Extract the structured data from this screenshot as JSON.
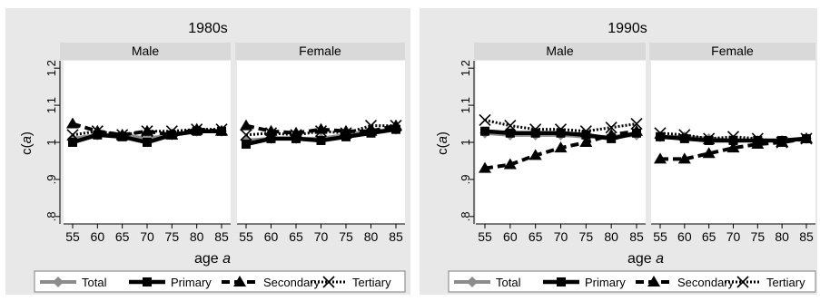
{
  "colors": {
    "outer_background": "#e8e8e8",
    "strip_background": "#d9d9d9",
    "plot_background": "#ffffff",
    "total": "#8c8c8c",
    "primary": "#000000",
    "secondary": "#000000",
    "tertiary": "#000000"
  },
  "chart_data": [
    {
      "type": "line",
      "title": "1980s",
      "xlabel": "age a",
      "ylabel": "c(a)",
      "panels": [
        "Male",
        "Female"
      ],
      "x": [
        55,
        60,
        65,
        70,
        75,
        80,
        85
      ],
      "xticks": [
        "55",
        "60",
        "65",
        "70",
        "75",
        "80",
        "85"
      ],
      "yticks": [
        ".8",
        ".9",
        "1",
        "1.1",
        "1.2"
      ],
      "ylim": [
        0.78,
        1.22
      ],
      "grid": false,
      "legend_position": "bottom",
      "series": {
        "Male": [
          {
            "name": "Total",
            "style": "solid-gray-diamond",
            "values": [
              1.01,
              1.02,
              1.02,
              1.01,
              1.02,
              1.03,
              1.03
            ]
          },
          {
            "name": "Primary",
            "style": "solid-thick-square",
            "values": [
              1.0,
              1.02,
              1.015,
              1.0,
              1.02,
              1.03,
              1.03
            ]
          },
          {
            "name": "Secondary",
            "style": "dashed-triangle",
            "values": [
              1.05,
              1.03,
              1.02,
              1.03,
              1.02,
              1.035,
              1.03
            ]
          },
          {
            "name": "Tertiary",
            "style": "dotted-x",
            "values": [
              1.02,
              1.03,
              1.02,
              1.03,
              1.03,
              1.035,
              1.035
            ]
          }
        ],
        "Female": [
          {
            "name": "Total",
            "style": "solid-gray-diamond",
            "values": [
              1.005,
              1.01,
              1.01,
              1.01,
              1.02,
              1.03,
              1.035
            ]
          },
          {
            "name": "Primary",
            "style": "solid-thick-square",
            "values": [
              0.995,
              1.01,
              1.01,
              1.005,
              1.015,
              1.025,
              1.035
            ]
          },
          {
            "name": "Secondary",
            "style": "dashed-triangle",
            "values": [
              1.045,
              1.03,
              1.025,
              1.035,
              1.03,
              1.03,
              1.045
            ]
          },
          {
            "name": "Tertiary",
            "style": "dotted-x",
            "values": [
              1.02,
              1.025,
              1.02,
              1.03,
              1.025,
              1.045,
              1.045
            ]
          }
        ]
      },
      "legend": [
        "Total",
        "Primary",
        "Secondary",
        "Tertiary"
      ]
    },
    {
      "type": "line",
      "title": "1990s",
      "xlabel": "age a",
      "ylabel": "c(a)",
      "panels": [
        "Male",
        "Female"
      ],
      "x": [
        55,
        60,
        65,
        70,
        75,
        80,
        85
      ],
      "xticks": [
        "55",
        "60",
        "65",
        "70",
        "75",
        "80",
        "85"
      ],
      "yticks": [
        ".8",
        ".9",
        "1",
        "1.1",
        "1.2"
      ],
      "ylim": [
        0.78,
        1.22
      ],
      "grid": false,
      "legend_position": "bottom",
      "series": {
        "Male": [
          {
            "name": "Total",
            "style": "solid-gray-diamond",
            "values": [
              1.025,
              1.02,
              1.02,
              1.02,
              1.015,
              1.015,
              1.02
            ]
          },
          {
            "name": "Primary",
            "style": "solid-thick-square",
            "values": [
              1.03,
              1.025,
              1.025,
              1.025,
              1.02,
              1.01,
              1.025
            ]
          },
          {
            "name": "Secondary",
            "style": "dashed-triangle",
            "values": [
              0.93,
              0.94,
              0.965,
              0.985,
              1.0,
              1.02,
              1.03
            ]
          },
          {
            "name": "Tertiary",
            "style": "dotted-x",
            "values": [
              1.06,
              1.045,
              1.035,
              1.035,
              1.03,
              1.04,
              1.05
            ]
          }
        ],
        "Female": [
          {
            "name": "Total",
            "style": "solid-gray-diamond",
            "values": [
              1.015,
              1.015,
              1.01,
              1.005,
              1.005,
              1.005,
              1.01
            ]
          },
          {
            "name": "Primary",
            "style": "solid-thick-square",
            "values": [
              1.015,
              1.01,
              1.005,
              1.005,
              1.005,
              1.005,
              1.01
            ]
          },
          {
            "name": "Secondary",
            "style": "dashed-triangle",
            "values": [
              0.955,
              0.955,
              0.97,
              0.985,
              0.995,
              1.0,
              1.01
            ]
          },
          {
            "name": "Tertiary",
            "style": "dotted-x",
            "values": [
              1.025,
              1.02,
              1.01,
              1.015,
              1.01,
              1.0,
              1.01
            ]
          }
        ]
      },
      "legend": [
        "Total",
        "Primary",
        "Secondary",
        "Tertiary"
      ]
    }
  ]
}
